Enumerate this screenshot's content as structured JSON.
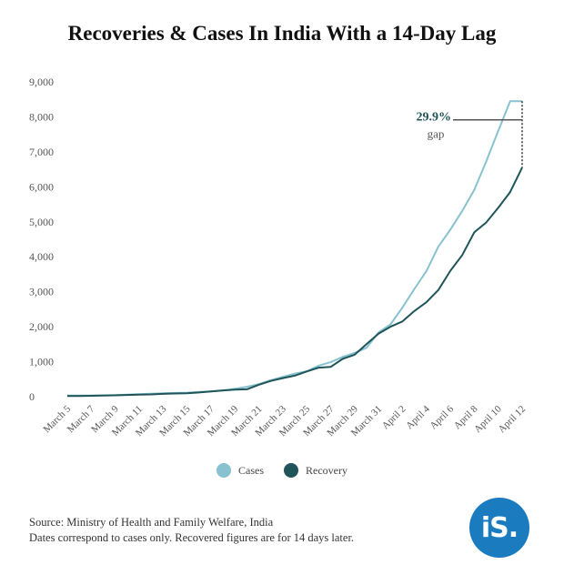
{
  "title": "Recoveries & Cases In India With a 14-Day Lag",
  "chart_data": {
    "type": "line",
    "title": "Recoveries & Cases In India With a 14-Day Lag",
    "xlabel": "",
    "ylabel": "",
    "ylim": [
      0,
      9000
    ],
    "yticks": [
      0,
      1000,
      2000,
      3000,
      4000,
      5000,
      6000,
      7000,
      8000,
      9000
    ],
    "ytick_labels": [
      "0",
      "1,000",
      "2,000",
      "3,000",
      "4,000",
      "5,000",
      "6,000",
      "7,000",
      "8,000",
      "9,000"
    ],
    "grid": false,
    "legend": "bottom",
    "categories": [
      "March 5",
      "March 6",
      "March 7",
      "March 8",
      "March 9",
      "March 10",
      "March 11",
      "March 12",
      "March 13",
      "March 14",
      "March 15",
      "March 16",
      "March 17",
      "March 18",
      "March 19",
      "March 20",
      "March 21",
      "March 22",
      "March 23",
      "March 24",
      "March 25",
      "March 26",
      "March 27",
      "March 28",
      "March 29",
      "March 30",
      "March 31",
      "April 1",
      "April 2",
      "April 3",
      "April 4",
      "April 5",
      "April 6",
      "April 7",
      "April 8",
      "April 9",
      "April 10",
      "April 11",
      "April 12"
    ],
    "xtick_labels": [
      "March 5",
      "March 7",
      "March 9",
      "March 11",
      "March 13",
      "March 15",
      "March 17",
      "March 19",
      "March 21",
      "March 23",
      "March 25",
      "March 27",
      "March 29",
      "March 31",
      "April 2",
      "April 4",
      "April 6",
      "April 8",
      "April 10",
      "April 12"
    ],
    "series": [
      {
        "name": "Cases",
        "color": "#88c1cf",
        "values": [
          30,
          31,
          34,
          39,
          43,
          60,
          73,
          82,
          95,
          107,
          114,
          137,
          151,
          173,
          223,
          283,
          360,
          468,
          567,
          657,
          727,
          887,
          987,
          1137,
          1251,
          1397,
          1834,
          2069,
          2547,
          3082,
          3588,
          4289,
          4778,
          5311,
          5916,
          6725,
          7598,
          8447,
          8447
        ]
      },
      {
        "name": "Recovery",
        "color": "#1f5559",
        "values": [
          20,
          22,
          25,
          30,
          40,
          50,
          60,
          65,
          80,
          90,
          100,
          120,
          150,
          180,
          200,
          210,
          340,
          450,
          530,
          600,
          720,
          830,
          850,
          1080,
          1200,
          1500,
          1800,
          2000,
          2150,
          2450,
          2700,
          3050,
          3600,
          4050,
          4700,
          4980,
          5400,
          5850,
          6550
        ]
      }
    ],
    "annotation": {
      "value": "29.9%",
      "label": "gap"
    }
  },
  "legend": {
    "cases_label": "Cases",
    "recovery_label": "Recovery"
  },
  "source": {
    "line1": "Source: Ministry of Health and Family Welfare, India",
    "line2": "Dates correspond to cases only. Recovered figures are for 14 days later."
  },
  "logo": {
    "text": "iS."
  }
}
